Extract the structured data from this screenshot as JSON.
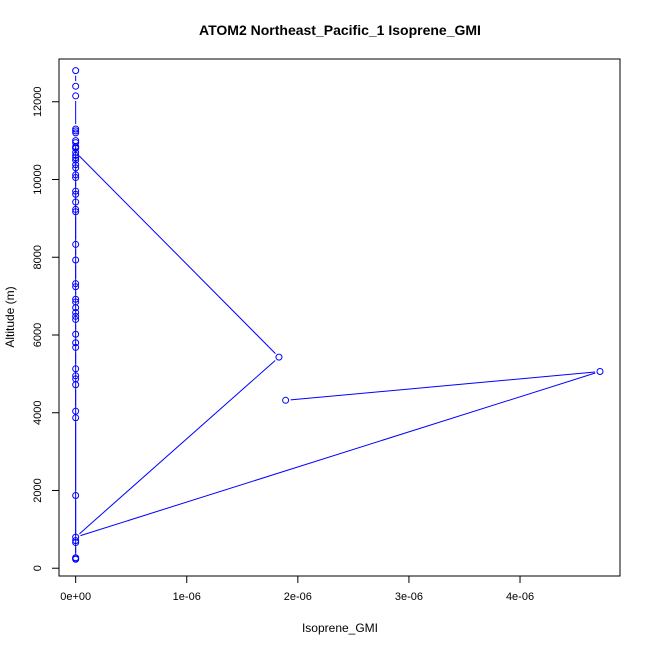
{
  "chart_data": {
    "type": "line",
    "title": "ATOM2 Northeast_Pacific_1 Isoprene_GMI",
    "xlabel": "Isoprene_GMI",
    "ylabel": "Altitude (m)",
    "xlim": [
      -1.5e-07,
      4.9e-06
    ],
    "ylim": [
      -200,
      13100
    ],
    "x_ticks": [
      0,
      1e-06,
      2e-06,
      3e-06,
      4e-06
    ],
    "x_tick_labels": [
      "0e+00",
      "1e-06",
      "2e-06",
      "3e-06",
      "4e-06"
    ],
    "y_ticks": [
      0,
      2000,
      4000,
      6000,
      8000,
      10000,
      12000
    ],
    "y_tick_labels": [
      "0",
      "2000",
      "4000",
      "6000",
      "8000",
      "10000",
      "12000"
    ],
    "series_color": "#0000ff",
    "marker": "open-circle",
    "grid": false,
    "series": [
      {
        "x": [
          0,
          0,
          0,
          0,
          0,
          0,
          0,
          0,
          0,
          0,
          0,
          0,
          0,
          0,
          0,
          0,
          0,
          0,
          0,
          0,
          0,
          0,
          0,
          0,
          0,
          0,
          0,
          0,
          0,
          0,
          0,
          0,
          0,
          0,
          0,
          0,
          0,
          0,
          0,
          0,
          0,
          0,
          0,
          0,
          0,
          0,
          0,
          0,
          0,
          1.83e-06,
          0,
          4.72e-06,
          1.89e-06
        ],
        "y": [
          12800,
          12400,
          12150,
          11300,
          11250,
          11200,
          11000,
          10620,
          10560,
          10500,
          10380,
          10300,
          10120,
          10050,
          9700,
          9620,
          9420,
          9230,
          9170,
          8330,
          7930,
          7320,
          7240,
          6920,
          6850,
          6700,
          6580,
          6480,
          6400,
          6020,
          5800,
          5680,
          5130,
          4950,
          4870,
          4720,
          4040,
          3870,
          1870,
          710,
          660,
          270,
          240,
          230,
          10950,
          10850,
          10820,
          10800,
          10700,
          5430,
          800,
          5060,
          4320
        ]
      }
    ]
  }
}
